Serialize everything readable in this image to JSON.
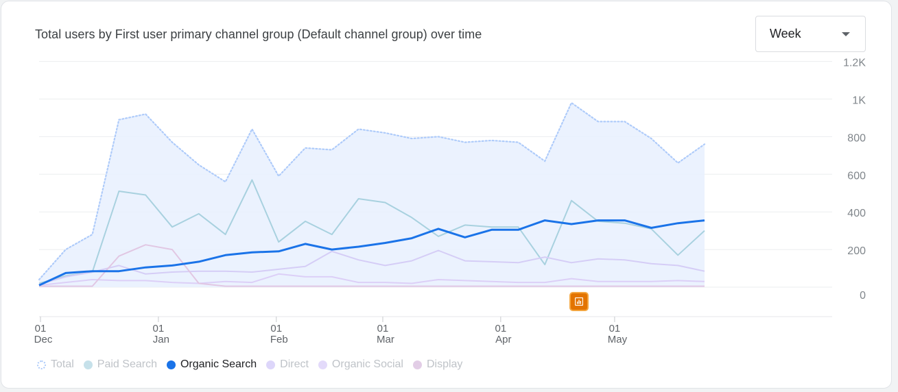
{
  "card": {
    "title": "Total users by First user primary channel group (Default channel group) over time",
    "range_selector": {
      "value": "Week"
    }
  },
  "chart_data": {
    "type": "line",
    "title": "Total users by First user primary channel group (Default channel group) over time",
    "xlabel": "",
    "ylabel": "",
    "ylim": [
      0,
      1200
    ],
    "y_ticks": [
      {
        "value": 0,
        "label": "0"
      },
      {
        "value": 200,
        "label": "200"
      },
      {
        "value": 400,
        "label": "400"
      },
      {
        "value": 600,
        "label": "600"
      },
      {
        "value": 800,
        "label": "800"
      },
      {
        "value": 1000,
        "label": "1K"
      },
      {
        "value": 1200,
        "label": "1.2K"
      }
    ],
    "x_ticks": [
      {
        "week": 0,
        "day": "01",
        "month": "Dec"
      },
      {
        "week": 4.43,
        "day": "01",
        "month": "Jan"
      },
      {
        "week": 8.86,
        "day": "01",
        "month": "Feb"
      },
      {
        "week": 12.86,
        "day": "01",
        "month": "Mar"
      },
      {
        "week": 17.29,
        "day": "01",
        "month": "Apr"
      },
      {
        "week": 21.57,
        "day": "01",
        "month": "May"
      }
    ],
    "grid": true,
    "legend_position": "bottom-left",
    "series": [
      {
        "name": "Total",
        "color": "#aecbfa",
        "style": "dotted-area",
        "active": false,
        "values": [
          40,
          200,
          280,
          890,
          920,
          770,
          650,
          560,
          840,
          590,
          740,
          730,
          840,
          820,
          790,
          800,
          770,
          780,
          770,
          670,
          980,
          880,
          880,
          790,
          660,
          760
        ]
      },
      {
        "name": "Paid Search",
        "color": "#a8d1df",
        "style": "line",
        "active": false,
        "values": [
          20,
          60,
          80,
          510,
          490,
          320,
          390,
          280,
          570,
          240,
          350,
          280,
          470,
          450,
          370,
          270,
          330,
          320,
          320,
          120,
          460,
          350,
          340,
          310,
          170,
          300
        ]
      },
      {
        "name": "Organic Search",
        "color": "#1a73e8",
        "style": "line",
        "active": true,
        "values": [
          10,
          75,
          85,
          85,
          105,
          115,
          135,
          170,
          185,
          190,
          230,
          200,
          215,
          235,
          260,
          310,
          265,
          305,
          305,
          355,
          335,
          355,
          355,
          315,
          340,
          355
        ]
      },
      {
        "name": "Direct",
        "color": "#d5cdf6",
        "style": "line",
        "active": false,
        "values": [
          15,
          55,
          80,
          115,
          70,
          80,
          85,
          85,
          80,
          95,
          110,
          190,
          145,
          115,
          140,
          195,
          140,
          135,
          130,
          160,
          130,
          150,
          145,
          125,
          115,
          85
        ]
      },
      {
        "name": "Organic Social",
        "color": "#dccff7",
        "style": "line",
        "active": false,
        "values": [
          10,
          25,
          40,
          35,
          35,
          25,
          20,
          30,
          25,
          70,
          55,
          55,
          25,
          25,
          20,
          40,
          35,
          30,
          25,
          25,
          45,
          30,
          30,
          30,
          35,
          30
        ]
      },
      {
        "name": "Display",
        "color": "#e1c7e3",
        "style": "line",
        "active": false,
        "values": [
          5,
          5,
          5,
          165,
          225,
          200,
          20,
          5,
          5,
          5,
          5,
          5,
          5,
          5,
          5,
          5,
          5,
          5,
          5,
          5,
          5,
          5,
          5,
          5,
          5,
          5
        ]
      }
    ]
  },
  "legend": {
    "items": [
      {
        "label": "Total",
        "color": "#aecbfa",
        "dotted": true,
        "active": false
      },
      {
        "label": "Paid Search",
        "color": "#c6e1ea",
        "dotted": false,
        "active": false
      },
      {
        "label": "Organic Search",
        "color": "#1a73e8",
        "dotted": false,
        "active": true
      },
      {
        "label": "Direct",
        "color": "#ddd6fa",
        "dotted": false,
        "active": false
      },
      {
        "label": "Organic Social",
        "color": "#e3dafa",
        "dotted": false,
        "active": false
      },
      {
        "label": "Display",
        "color": "#e2cde6",
        "dotted": false,
        "active": false
      }
    ]
  },
  "annotation": {
    "icon": "insights-icon",
    "color": "#e37400"
  }
}
